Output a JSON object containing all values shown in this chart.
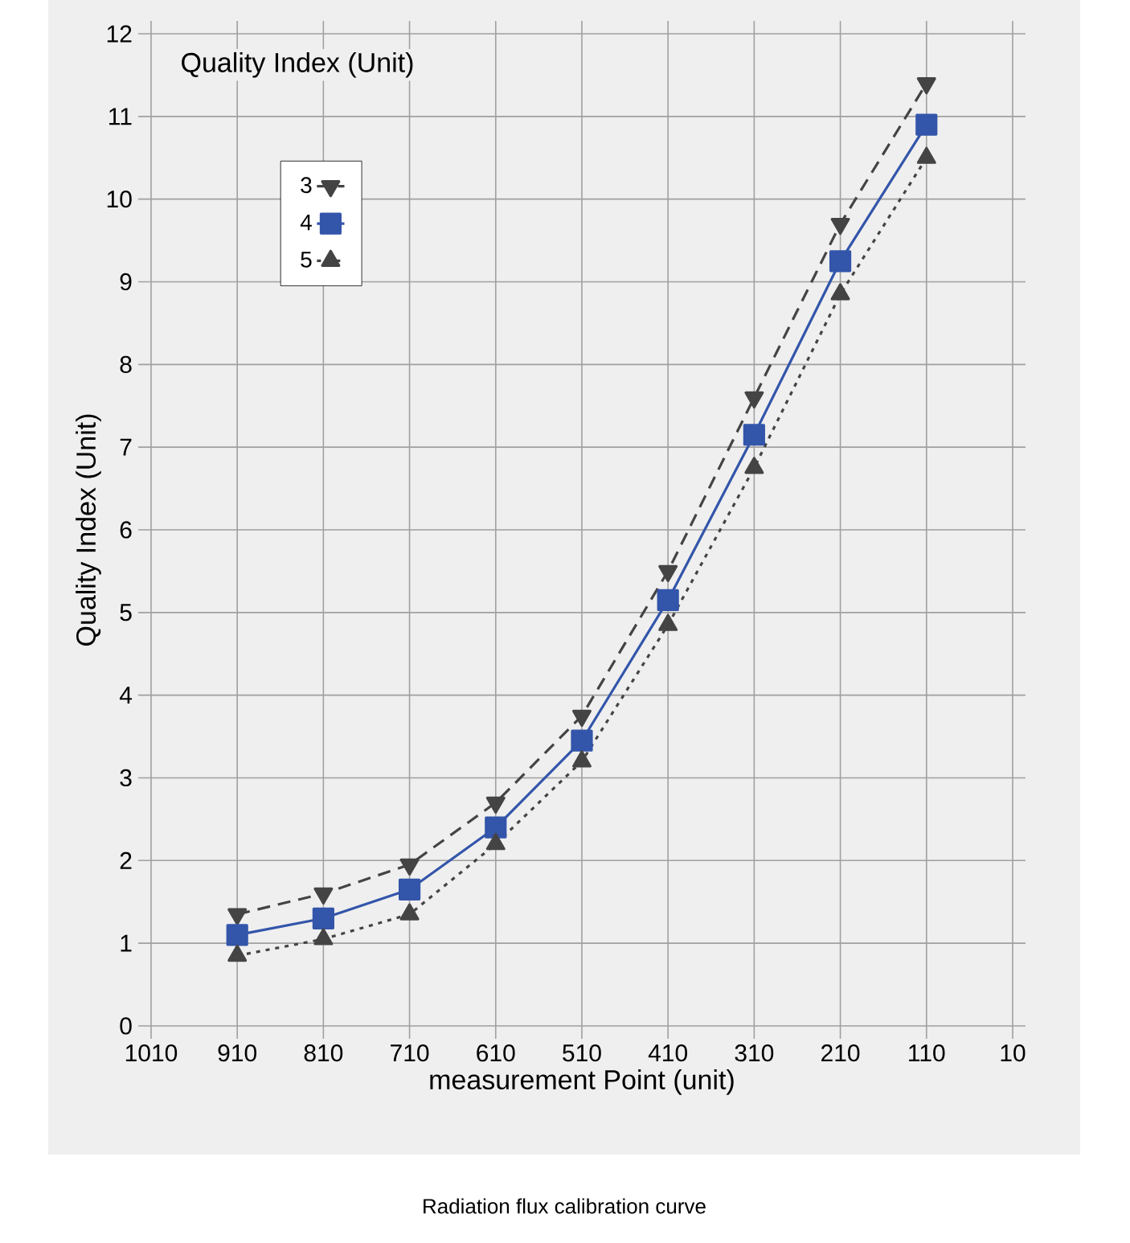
{
  "chart_data": {
    "type": "line",
    "xlabel": "measurement  Point (unit)",
    "ylabel": "Quality Index (Unit)",
    "annotations": [
      "Quality Index (Unit)",
      "Radiation flux calibration curve"
    ],
    "x": [
      910,
      810,
      710,
      610,
      510,
      410,
      310,
      210,
      110
    ],
    "series": [
      {
        "name": "3",
        "color": "#444444",
        "marker": "triangle-down",
        "line_style": "dashed",
        "values": [
          1.35,
          1.6,
          1.95,
          2.7,
          3.75,
          5.5,
          7.6,
          9.7,
          11.4
        ]
      },
      {
        "name": "4",
        "color": "#3355aa",
        "marker": "square",
        "line_style": "solid",
        "values": [
          1.1,
          1.3,
          1.65,
          2.4,
          3.45,
          5.15,
          7.15,
          9.25,
          10.9
        ]
      },
      {
        "name": "5",
        "color": "#444444",
        "marker": "triangle",
        "line_style": "dotted",
        "values": [
          0.85,
          1.05,
          1.35,
          2.2,
          3.2,
          4.85,
          6.75,
          8.85,
          10.5
        ]
      }
    ],
    "xlim": [
      1010,
      10
    ],
    "xticks": [
      1010,
      910,
      810,
      710,
      610,
      510,
      410,
      310,
      210,
      110,
      10
    ],
    "ylim": [
      0,
      12
    ],
    "yticks": [
      0,
      1,
      2,
      3,
      4,
      5,
      6,
      7,
      8,
      9,
      10,
      11,
      12
    ],
    "grid": true,
    "legend": "top left"
  }
}
